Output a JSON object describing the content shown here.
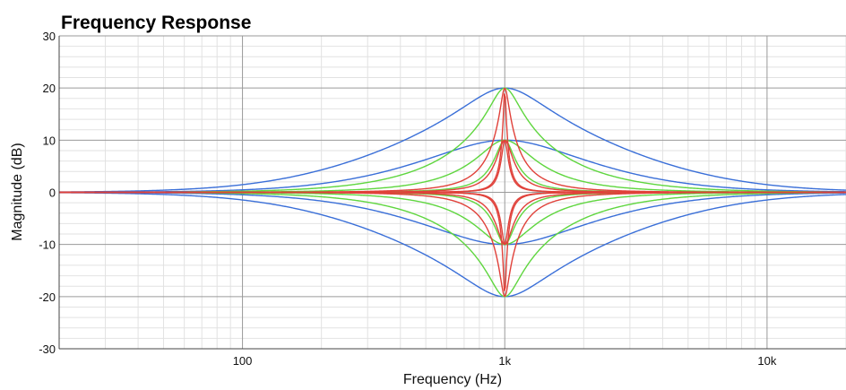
{
  "chart_data": {
    "type": "line",
    "title": "Frequency Response",
    "xlabel": "Frequency (Hz)",
    "ylabel": "Magnitude (dB)",
    "x_scale": "log",
    "xlim": [
      20,
      20000
    ],
    "ylim": [
      -30,
      30
    ],
    "x_ticks": [
      {
        "value": 100,
        "label": "100"
      },
      {
        "value": 1000,
        "label": "1k"
      },
      {
        "value": 10000,
        "label": "10k"
      }
    ],
    "y_ticks": [
      {
        "value": 30,
        "label": "30"
      },
      {
        "value": 20,
        "label": "20"
      },
      {
        "value": 10,
        "label": "10"
      },
      {
        "value": 0,
        "label": "0"
      },
      {
        "value": -10,
        "label": "-10"
      },
      {
        "value": -20,
        "label": "-20"
      },
      {
        "value": -30,
        "label": "-30"
      }
    ],
    "grid": true,
    "center_frequency": 1000,
    "series": [
      {
        "color": "#3a6fd8",
        "gain_db": 20,
        "q": 0.5
      },
      {
        "color": "#3a6fd8",
        "gain_db": 10,
        "q": 0.5
      },
      {
        "color": "#3a6fd8",
        "gain_db": -10,
        "q": 0.5
      },
      {
        "color": "#3a6fd8",
        "gain_db": -20,
        "q": 0.5
      },
      {
        "color": "#5fd63f",
        "gain_db": 20,
        "q": 1.4
      },
      {
        "color": "#5fd63f",
        "gain_db": 10,
        "q": 1.4
      },
      {
        "color": "#5fd63f",
        "gain_db": -10,
        "q": 1.4
      },
      {
        "color": "#5fd63f",
        "gain_db": -20,
        "q": 1.4
      },
      {
        "color": "#5fd63f",
        "gain_db": 10,
        "q": 4
      },
      {
        "color": "#5fd63f",
        "gain_db": -10,
        "q": 4
      },
      {
        "color": "#e0413a",
        "gain_db": 20,
        "q": 5
      },
      {
        "color": "#e0413a",
        "gain_db": 10,
        "q": 5
      },
      {
        "color": "#e0413a",
        "gain_db": -10,
        "q": 5
      },
      {
        "color": "#e0413a",
        "gain_db": -20,
        "q": 5
      },
      {
        "color": "#e0413a",
        "gain_db": 10,
        "q": 12
      },
      {
        "color": "#e0413a",
        "gain_db": -10,
        "q": 12
      },
      {
        "color": "#e0413a",
        "gain_db": 20,
        "q": 20
      },
      {
        "color": "#e0413a",
        "gain_db": -20,
        "q": 20
      }
    ]
  }
}
